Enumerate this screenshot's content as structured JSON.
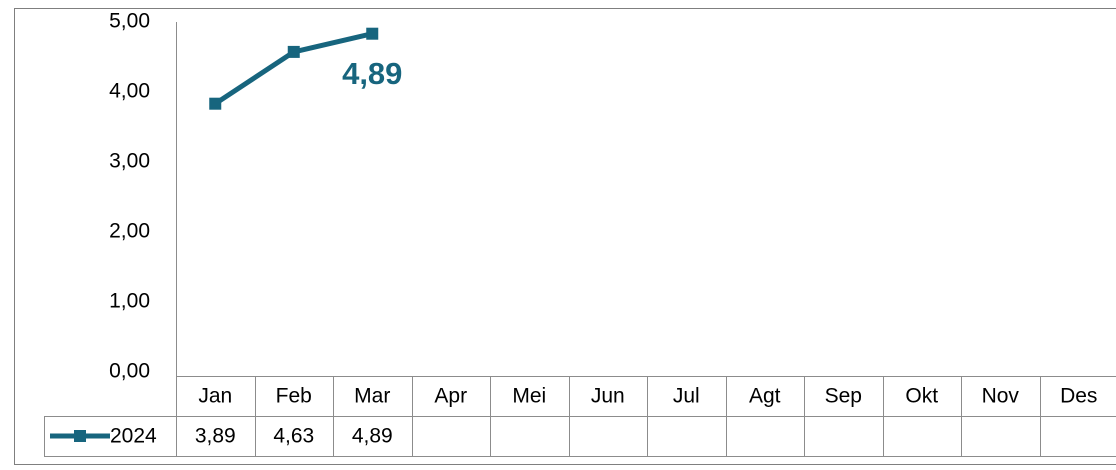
{
  "chart_data": {
    "type": "line",
    "categories": [
      "Jan",
      "Feb",
      "Mar",
      "Apr",
      "Mei",
      "Jun",
      "Jul",
      "Agt",
      "Sep",
      "Okt",
      "Nov",
      "Des"
    ],
    "series": [
      {
        "name": "2024",
        "color": "#17657e",
        "values": [
          3.89,
          4.63,
          4.89,
          null,
          null,
          null,
          null,
          null,
          null,
          null,
          null,
          null
        ],
        "value_labels": [
          "3,89",
          "4,63",
          "4,89",
          null,
          null,
          null,
          null,
          null,
          null,
          null,
          null,
          null
        ]
      }
    ],
    "annotations": [
      {
        "text": "4,89",
        "category": "Mar"
      }
    ],
    "ylim": [
      0,
      5
    ],
    "yticks": [
      {
        "value": 0,
        "label": "0,00"
      },
      {
        "value": 1,
        "label": "1,00"
      },
      {
        "value": 2,
        "label": "2,00"
      },
      {
        "value": 3,
        "label": "3,00"
      },
      {
        "value": 4,
        "label": "4,00"
      },
      {
        "value": 5,
        "label": "5,00"
      }
    ],
    "grid": false,
    "data_table": true
  }
}
